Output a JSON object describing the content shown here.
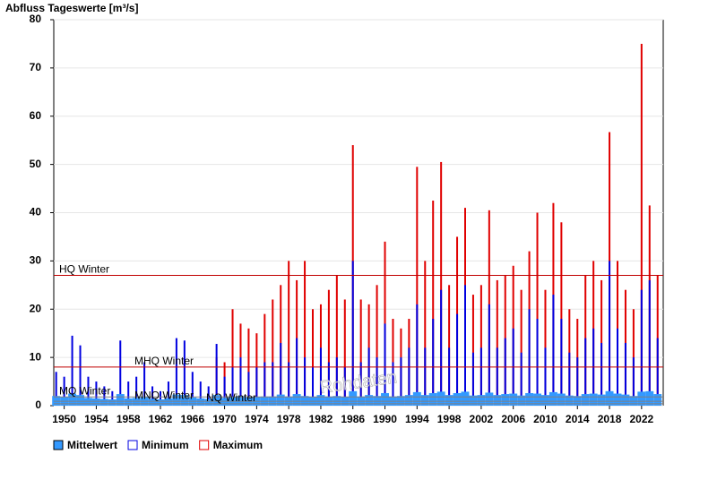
{
  "chart_data": {
    "type": "bar",
    "title": "Abfluss Tageswerte [m³/s]",
    "watermark": "Rohdaten",
    "x": [
      1949,
      1950,
      1951,
      1952,
      1953,
      1954,
      1955,
      1956,
      1957,
      1958,
      1959,
      1960,
      1961,
      1962,
      1963,
      1964,
      1965,
      1966,
      1967,
      1968,
      1969,
      1970,
      1971,
      1972,
      1973,
      1974,
      1975,
      1976,
      1977,
      1978,
      1979,
      1980,
      1981,
      1982,
      1983,
      1984,
      1985,
      1986,
      1987,
      1988,
      1989,
      1990,
      1991,
      1992,
      1993,
      1994,
      1995,
      1996,
      1997,
      1998,
      1999,
      2000,
      2001,
      2002,
      2003,
      2004,
      2005,
      2006,
      2007,
      2008,
      2009,
      2010,
      2011,
      2012,
      2013,
      2014,
      2015,
      2016,
      2017,
      2018,
      2019,
      2020,
      2021,
      2022,
      2023,
      2024
    ],
    "series": [
      {
        "name": "Maximum",
        "color": "#e00000",
        "values": [
          null,
          null,
          null,
          null,
          null,
          null,
          null,
          null,
          null,
          null,
          null,
          null,
          null,
          null,
          null,
          null,
          null,
          null,
          null,
          null,
          10,
          9,
          20,
          17,
          16,
          15,
          19,
          22,
          25,
          30,
          26,
          30,
          20,
          21,
          24,
          27,
          22,
          54,
          22,
          21,
          25,
          34,
          18,
          16,
          18,
          49.5,
          30,
          42.5,
          50.5,
          25,
          35,
          41,
          23,
          25,
          40.5,
          26,
          27,
          29,
          24,
          32,
          40,
          24,
          42,
          38,
          20,
          18,
          27,
          30,
          26,
          56.7,
          30,
          24,
          20,
          75,
          41.5,
          27
        ]
      },
      {
        "name": "Minimum",
        "color": "#0000e0",
        "values": [
          7,
          6,
          14.5,
          12.5,
          6,
          5,
          4,
          3,
          13.5,
          5,
          6,
          9,
          4,
          3,
          5,
          14,
          13.5,
          7,
          5,
          4,
          12.8,
          6,
          8,
          10,
          7,
          8,
          9,
          9,
          13,
          9,
          14,
          10,
          8,
          12,
          9,
          10,
          8,
          30,
          9,
          12,
          10,
          17,
          9,
          10,
          12,
          21,
          12,
          18,
          24,
          12,
          19,
          25,
          11,
          12,
          21,
          12,
          14,
          16,
          11,
          20,
          18,
          12,
          23,
          18,
          11,
          10,
          14,
          16,
          13,
          30,
          16,
          13,
          10,
          24,
          26,
          14
        ]
      },
      {
        "name": "Mittelwert",
        "color": "#3399ff",
        "values": [
          2,
          1.8,
          2.5,
          2.2,
          1.6,
          1.5,
          1.4,
          1.3,
          2.4,
          1.5,
          1.6,
          1.9,
          1.4,
          1.3,
          1.5,
          2.3,
          2.2,
          1.7,
          1.5,
          1.4,
          2.2,
          1.6,
          1.8,
          2,
          1.7,
          1.8,
          1.9,
          1.9,
          2.3,
          1.9,
          2.4,
          2,
          1.8,
          2.2,
          1.9,
          2,
          1.8,
          3,
          1.9,
          2.2,
          2,
          2.6,
          1.9,
          2,
          2.2,
          2.8,
          2.2,
          2.6,
          2.9,
          2.2,
          2.6,
          2.9,
          2.1,
          2.2,
          2.7,
          2.2,
          2.4,
          2.5,
          2.1,
          2.6,
          2.5,
          2.2,
          2.8,
          2.5,
          2.1,
          2,
          2.4,
          2.5,
          2.3,
          3,
          2.5,
          2.3,
          2,
          2.9,
          3,
          2.4
        ]
      }
    ],
    "reference_lines": [
      {
        "label": "HQ Winter",
        "value": 27,
        "color": "#c00000"
      },
      {
        "label": "MHQ Winter",
        "value": 8,
        "color": "#c00000"
      },
      {
        "label": "MQ Winter",
        "value": 1.8,
        "color": "#808080"
      },
      {
        "label": "MNQ Winter",
        "value": 0.9,
        "color": "#808080"
      },
      {
        "label": "NQ Winter",
        "value": 0.4,
        "color": "#808080"
      }
    ],
    "xlim": [
      1948.7,
      2024.7
    ],
    "xticks": [
      1950,
      1954,
      1958,
      1962,
      1966,
      1970,
      1974,
      1978,
      1982,
      1986,
      1990,
      1994,
      1998,
      2002,
      2006,
      2010,
      2014,
      2018,
      2022
    ],
    "ylim": [
      0,
      80
    ],
    "yticks": [
      0,
      10,
      20,
      30,
      40,
      50,
      60,
      70,
      80
    ],
    "grid": true,
    "legend_order": [
      "Mittelwert",
      "Minimum",
      "Maximum"
    ]
  }
}
